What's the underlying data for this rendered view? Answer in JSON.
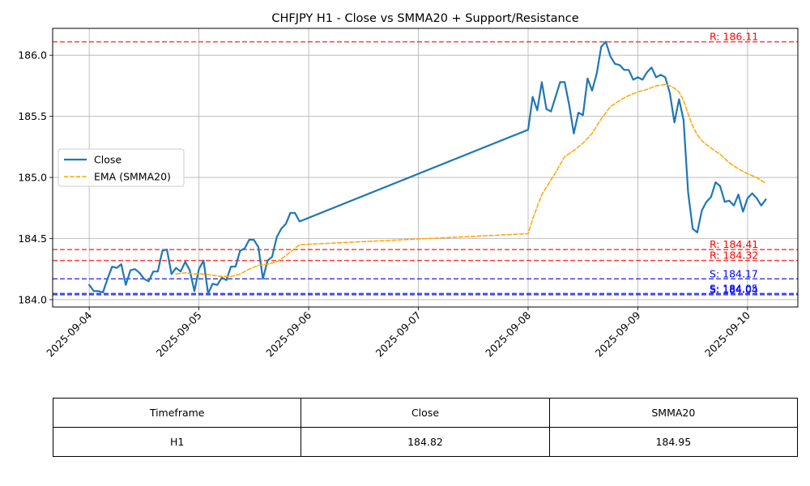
{
  "chart_data": {
    "type": "line",
    "title": "CHFJPY H1 - Close vs SMMA20 + Support/Resistance",
    "xlabel": "",
    "ylabel": "",
    "x_ticks": [
      "2025-09-04",
      "2025-09-05",
      "2025-09-06",
      "2025-09-07",
      "2025-09-08",
      "2025-09-09",
      "2025-09-10"
    ],
    "y_ticks": [
      "184.0",
      "184.5",
      "185.0",
      "185.5",
      "186.0"
    ],
    "xlim": [
      "2025-09-03T16:00",
      "2025-09-10T11:00"
    ],
    "ylim": [
      183.94,
      186.22
    ],
    "grid": true,
    "legend_position": "center-left",
    "series": [
      {
        "name": "Close",
        "color": "#1f77b4",
        "style": "solid",
        "points": [
          [
            "2025-09-04T00:00",
            184.12
          ],
          [
            "2025-09-04T01:00",
            184.07
          ],
          [
            "2025-09-04T02:00",
            184.07
          ],
          [
            "2025-09-04T03:00",
            184.06
          ],
          [
            "2025-09-04T04:00",
            184.17
          ],
          [
            "2025-09-04T05:00",
            184.27
          ],
          [
            "2025-09-04T06:00",
            184.26
          ],
          [
            "2025-09-04T07:00",
            184.29
          ],
          [
            "2025-09-04T08:00",
            184.12
          ],
          [
            "2025-09-04T09:00",
            184.24
          ],
          [
            "2025-09-04T10:00",
            184.25
          ],
          [
            "2025-09-04T11:00",
            184.22
          ],
          [
            "2025-09-04T12:00",
            184.17
          ],
          [
            "2025-09-04T13:00",
            184.15
          ],
          [
            "2025-09-04T14:00",
            184.23
          ],
          [
            "2025-09-04T15:00",
            184.23
          ],
          [
            "2025-09-04T16:00",
            184.4
          ],
          [
            "2025-09-04T17:00",
            184.41
          ],
          [
            "2025-09-04T18:00",
            184.21
          ],
          [
            "2025-09-04T19:00",
            184.26
          ],
          [
            "2025-09-04T20:00",
            184.23
          ],
          [
            "2025-09-04T21:00",
            184.31
          ],
          [
            "2025-09-04T22:00",
            184.24
          ],
          [
            "2025-09-04T23:00",
            184.07
          ],
          [
            "2025-09-05T00:00",
            184.25
          ],
          [
            "2025-09-05T01:00",
            184.32
          ],
          [
            "2025-09-05T02:00",
            184.05
          ],
          [
            "2025-09-05T03:00",
            184.13
          ],
          [
            "2025-09-05T04:00",
            184.12
          ],
          [
            "2025-09-05T05:00",
            184.18
          ],
          [
            "2025-09-05T06:00",
            184.16
          ],
          [
            "2025-09-05T07:00",
            184.27
          ],
          [
            "2025-09-05T08:00",
            184.27
          ],
          [
            "2025-09-05T09:00",
            184.4
          ],
          [
            "2025-09-05T10:00",
            184.42
          ],
          [
            "2025-09-05T11:00",
            184.49
          ],
          [
            "2025-09-05T12:00",
            184.49
          ],
          [
            "2025-09-05T13:00",
            184.43
          ],
          [
            "2025-09-05T14:00",
            184.17
          ],
          [
            "2025-09-05T15:00",
            184.32
          ],
          [
            "2025-09-05T16:00",
            184.35
          ],
          [
            "2025-09-05T17:00",
            184.51
          ],
          [
            "2025-09-05T18:00",
            184.58
          ],
          [
            "2025-09-05T19:00",
            184.62
          ],
          [
            "2025-09-05T20:00",
            184.71
          ],
          [
            "2025-09-05T21:00",
            184.71
          ],
          [
            "2025-09-05T22:00",
            184.64
          ],
          [
            "2025-09-08T00:00",
            185.39
          ],
          [
            "2025-09-08T01:00",
            185.66
          ],
          [
            "2025-09-08T02:00",
            185.55
          ],
          [
            "2025-09-08T03:00",
            185.78
          ],
          [
            "2025-09-08T04:00",
            185.56
          ],
          [
            "2025-09-08T05:00",
            185.54
          ],
          [
            "2025-09-08T06:00",
            185.66
          ],
          [
            "2025-09-08T07:00",
            185.78
          ],
          [
            "2025-09-08T08:00",
            185.78
          ],
          [
            "2025-09-08T09:00",
            185.59
          ],
          [
            "2025-09-08T10:00",
            185.36
          ],
          [
            "2025-09-08T11:00",
            185.53
          ],
          [
            "2025-09-08T12:00",
            185.51
          ],
          [
            "2025-09-08T13:00",
            185.81
          ],
          [
            "2025-09-08T14:00",
            185.71
          ],
          [
            "2025-09-08T15:00",
            185.85
          ],
          [
            "2025-09-08T16:00",
            186.07
          ],
          [
            "2025-09-08T17:00",
            186.11
          ],
          [
            "2025-09-08T18:00",
            185.99
          ],
          [
            "2025-09-08T19:00",
            185.93
          ],
          [
            "2025-09-08T20:00",
            185.92
          ],
          [
            "2025-09-08T21:00",
            185.88
          ],
          [
            "2025-09-08T22:00",
            185.88
          ],
          [
            "2025-09-08T23:00",
            185.8
          ],
          [
            "2025-09-09T00:00",
            185.82
          ],
          [
            "2025-09-09T01:00",
            185.8
          ],
          [
            "2025-09-09T02:00",
            185.86
          ],
          [
            "2025-09-09T03:00",
            185.9
          ],
          [
            "2025-09-09T04:00",
            185.82
          ],
          [
            "2025-09-09T05:00",
            185.84
          ],
          [
            "2025-09-09T06:00",
            185.82
          ],
          [
            "2025-09-09T07:00",
            185.69
          ],
          [
            "2025-09-09T08:00",
            185.45
          ],
          [
            "2025-09-09T09:00",
            185.64
          ],
          [
            "2025-09-09T10:00",
            185.47
          ],
          [
            "2025-09-09T11:00",
            184.88
          ],
          [
            "2025-09-09T12:00",
            184.58
          ],
          [
            "2025-09-09T13:00",
            184.55
          ],
          [
            "2025-09-09T14:00",
            184.73
          ],
          [
            "2025-09-09T15:00",
            184.8
          ],
          [
            "2025-09-09T16:00",
            184.84
          ],
          [
            "2025-09-09T17:00",
            184.96
          ],
          [
            "2025-09-09T18:00",
            184.93
          ],
          [
            "2025-09-09T19:00",
            184.8
          ],
          [
            "2025-09-09T20:00",
            184.81
          ],
          [
            "2025-09-09T21:00",
            184.77
          ],
          [
            "2025-09-09T22:00",
            184.86
          ],
          [
            "2025-09-09T23:00",
            184.72
          ],
          [
            "2025-09-10T00:00",
            184.83
          ],
          [
            "2025-09-10T01:00",
            184.87
          ],
          [
            "2025-09-10T02:00",
            184.83
          ],
          [
            "2025-09-10T03:00",
            184.77
          ],
          [
            "2025-09-10T04:00",
            184.82
          ]
        ]
      },
      {
        "name": "EMA (SMMA20)",
        "color": "#ffa500",
        "style": "dashed",
        "points": [
          [
            "2025-09-04T19:00",
            184.21
          ],
          [
            "2025-09-04T21:00",
            184.22
          ],
          [
            "2025-09-04T23:00",
            184.21
          ],
          [
            "2025-09-05T01:00",
            184.21
          ],
          [
            "2025-09-05T03:00",
            184.2
          ],
          [
            "2025-09-05T05:00",
            184.19
          ],
          [
            "2025-09-05T07:00",
            184.19
          ],
          [
            "2025-09-05T09:00",
            184.21
          ],
          [
            "2025-09-05T11:00",
            184.25
          ],
          [
            "2025-09-05T13:00",
            184.28
          ],
          [
            "2025-09-05T15:00",
            184.29
          ],
          [
            "2025-09-05T17:00",
            184.31
          ],
          [
            "2025-09-05T19:00",
            184.36
          ],
          [
            "2025-09-05T21:00",
            184.42
          ],
          [
            "2025-09-05T22:00",
            184.45
          ],
          [
            "2025-09-08T00:00",
            184.54
          ],
          [
            "2025-09-08T01:00",
            184.66
          ],
          [
            "2025-09-08T03:00",
            184.86
          ],
          [
            "2025-09-08T04:00",
            184.92
          ],
          [
            "2025-09-08T06:00",
            185.04
          ],
          [
            "2025-09-08T08:00",
            185.17
          ],
          [
            "2025-09-08T10:00",
            185.22
          ],
          [
            "2025-09-08T12:00",
            185.28
          ],
          [
            "2025-09-08T14:00",
            185.36
          ],
          [
            "2025-09-08T16:00",
            185.48
          ],
          [
            "2025-09-08T18:00",
            185.58
          ],
          [
            "2025-09-08T20:00",
            185.63
          ],
          [
            "2025-09-08T22:00",
            185.67
          ],
          [
            "2025-09-09T00:00",
            185.7
          ],
          [
            "2025-09-09T02:00",
            185.72
          ],
          [
            "2025-09-09T04:00",
            185.75
          ],
          [
            "2025-09-09T06:00",
            185.76
          ],
          [
            "2025-09-09T07:00",
            185.75
          ],
          [
            "2025-09-09T08:00",
            185.73
          ],
          [
            "2025-09-09T09:00",
            185.7
          ],
          [
            "2025-09-09T10:00",
            185.63
          ],
          [
            "2025-09-09T11:00",
            185.52
          ],
          [
            "2025-09-09T12:00",
            185.42
          ],
          [
            "2025-09-09T13:00",
            185.35
          ],
          [
            "2025-09-09T14:00",
            185.3
          ],
          [
            "2025-09-09T16:00",
            185.24
          ],
          [
            "2025-09-09T18:00",
            185.19
          ],
          [
            "2025-09-09T20:00",
            185.12
          ],
          [
            "2025-09-09T22:00",
            185.07
          ],
          [
            "2025-09-10T00:00",
            185.03
          ],
          [
            "2025-09-10T02:00",
            185.0
          ],
          [
            "2025-09-10T04:00",
            184.95
          ]
        ]
      }
    ],
    "levels": [
      {
        "type": "resistance",
        "value": 186.11,
        "label": "R: 186.11",
        "color": "#ff0000"
      },
      {
        "type": "resistance",
        "value": 184.41,
        "label": "R: 184.41",
        "color": "#ff0000"
      },
      {
        "type": "resistance",
        "value": 184.32,
        "label": "R: 184.32",
        "color": "#ff0000"
      },
      {
        "type": "support",
        "value": 184.17,
        "label": "S: 184.17",
        "color": "#0000ff"
      },
      {
        "type": "support",
        "value": 184.05,
        "label": "S: 184.05",
        "color": "#0000ff"
      },
      {
        "type": "support",
        "value": 184.04,
        "label": "S: 184.04",
        "color": "#0000ff"
      }
    ]
  },
  "table": {
    "headers": [
      "Timeframe",
      "Close",
      "SMMA20"
    ],
    "rows": [
      [
        "H1",
        "184.82",
        "184.95"
      ]
    ]
  }
}
